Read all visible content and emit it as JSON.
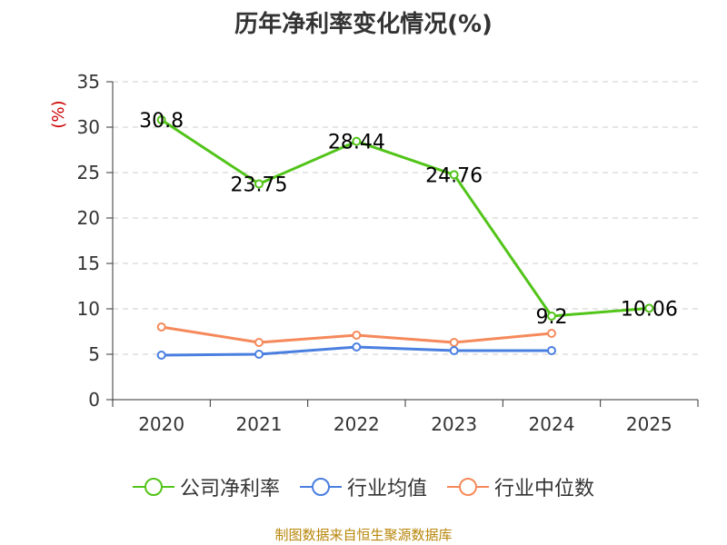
{
  "title": "历年净利率变化情况(%)",
  "source": "制图数据来自恒生聚源数据库",
  "colors": {
    "company": "#52c41a",
    "industry_avg": "#4a7fe0",
    "industry_median": "#f5895a",
    "grid": "#cccccc",
    "axis": "#333333"
  },
  "chart_data": {
    "type": "line",
    "title": "历年净利率变化情况(%)",
    "ylabel": "(%)",
    "xlabel": "",
    "categories": [
      "2020",
      "2021",
      "2022",
      "2023",
      "2024",
      "2025"
    ],
    "yticks": [
      "0",
      "5",
      "10",
      "15",
      "20",
      "25",
      "30",
      "35"
    ],
    "ylim": [
      0,
      35
    ],
    "grid": true,
    "legend_position": "bottom",
    "series": [
      {
        "name": "公司净利率",
        "values": [
          30.8,
          23.75,
          28.44,
          24.76,
          9.2,
          10.06
        ],
        "labels": [
          "30.8",
          "23.75",
          "28.44",
          "24.76",
          "9.2",
          "10.06"
        ]
      },
      {
        "name": "行业均值",
        "values": [
          4.9,
          5.0,
          5.8,
          5.4,
          5.4,
          null
        ]
      },
      {
        "name": "行业中位数",
        "values": [
          8.0,
          6.3,
          7.1,
          6.3,
          7.3,
          null
        ]
      }
    ]
  }
}
